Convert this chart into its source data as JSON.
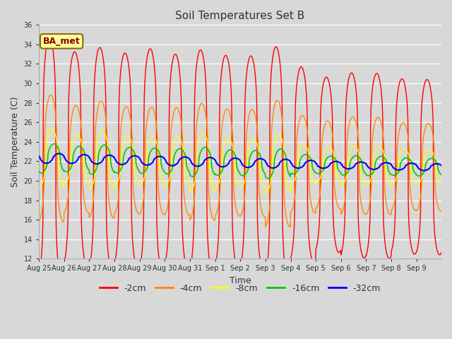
{
  "title": "Soil Temperatures Set B",
  "xlabel": "Time",
  "ylabel": "Soil Temperature (C)",
  "ylim": [
    12,
    36
  ],
  "yticks": [
    12,
    14,
    16,
    18,
    20,
    22,
    24,
    26,
    28,
    30,
    32,
    34,
    36
  ],
  "annotation": "BA_met",
  "fig_bg": "#d8d8d8",
  "plot_bg": "#d8d8d8",
  "series_colors": [
    "#ff0000",
    "#ff8800",
    "#ffff00",
    "#00cc00",
    "#0000ff"
  ],
  "series_labels": [
    "-2cm",
    "-4cm",
    "-8cm",
    "-16cm",
    "-32cm"
  ],
  "n_days": 16,
  "n_points_per_day": 144,
  "tick_labels": [
    "Aug 25",
    "Aug 26",
    "Aug 27",
    "Aug 28",
    "Aug 29",
    "Aug 30",
    "Aug 31",
    "Sep 1",
    "Sep 2",
    "Sep 3",
    "Sep 4",
    "Sep 5",
    "Sep 6",
    "Sep 7",
    "Sep 8",
    "Sep 9"
  ],
  "mean_base": 22.3,
  "mean_trend": -0.06,
  "amp_2cm": [
    12.5,
    11.0,
    11.5,
    11.0,
    11.5,
    11.0,
    11.5,
    11.0,
    11.0,
    12.0,
    10.0,
    9.0,
    9.5,
    9.5,
    9.0,
    9.0
  ],
  "amp_4cm": [
    6.5,
    5.5,
    6.0,
    5.5,
    5.5,
    5.5,
    6.0,
    5.5,
    5.5,
    6.5,
    5.0,
    4.5,
    5.0,
    5.0,
    4.5,
    4.5
  ],
  "amp_8cm": [
    3.0,
    2.5,
    3.0,
    2.5,
    2.5,
    2.5,
    3.0,
    2.5,
    2.5,
    3.0,
    2.0,
    1.8,
    2.0,
    2.0,
    1.8,
    1.8
  ],
  "amp_16cm": [
    1.5,
    1.3,
    1.5,
    1.3,
    1.3,
    1.3,
    1.5,
    1.3,
    1.3,
    1.5,
    1.0,
    0.9,
    1.0,
    1.0,
    0.9,
    0.9
  ],
  "amp_32cm": [
    0.5,
    0.45,
    0.45,
    0.45,
    0.45,
    0.45,
    0.45,
    0.45,
    0.45,
    0.45,
    0.4,
    0.35,
    0.35,
    0.35,
    0.35,
    0.35
  ],
  "phase_2cm": 0.42,
  "phase_4cm": 0.47,
  "phase_8cm": 0.52,
  "phase_16cm": 0.6,
  "phase_32cm": 0.8,
  "sharpness": 4.0,
  "lw_2cm": 1.0,
  "lw_4cm": 1.0,
  "lw_8cm": 1.0,
  "lw_16cm": 1.2,
  "lw_32cm": 1.5
}
